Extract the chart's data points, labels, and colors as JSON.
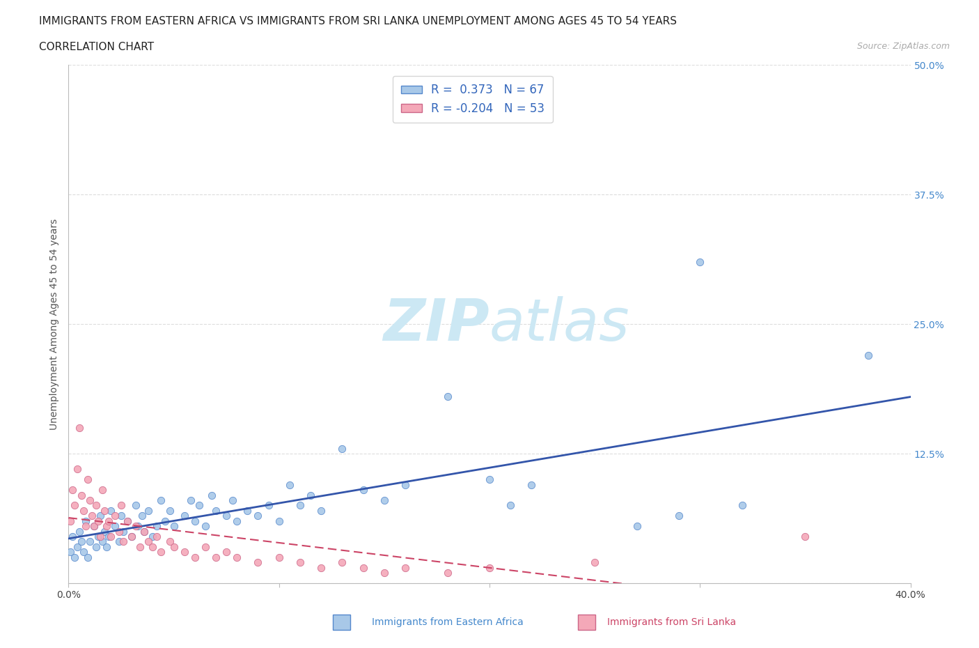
{
  "title_line1": "IMMIGRANTS FROM EASTERN AFRICA VS IMMIGRANTS FROM SRI LANKA UNEMPLOYMENT AMONG AGES 45 TO 54 YEARS",
  "title_line2": "CORRELATION CHART",
  "source": "Source: ZipAtlas.com",
  "xlabel_bottom_blue": "Immigrants from Eastern Africa",
  "xlabel_bottom_pink": "Immigrants from Sri Lanka",
  "ylabel": "Unemployment Among Ages 45 to 54 years",
  "xlim": [
    0.0,
    0.4
  ],
  "ylim": [
    0.0,
    0.5
  ],
  "xticks": [
    0.0,
    0.1,
    0.2,
    0.3,
    0.4
  ],
  "xtick_labels": [
    "0.0%",
    "",
    "",
    "",
    "40.0%"
  ],
  "yticks": [
    0.0,
    0.125,
    0.25,
    0.375,
    0.5
  ],
  "ytick_labels_right": [
    "",
    "12.5%",
    "25.0%",
    "37.5%",
    "50.0%"
  ],
  "blue_R": 0.373,
  "blue_N": 67,
  "pink_R": -0.204,
  "pink_N": 53,
  "blue_scatter_color": "#a8c8e8",
  "blue_scatter_edge": "#5588cc",
  "pink_scatter_color": "#f4a8b8",
  "pink_scatter_edge": "#cc6688",
  "blue_line_color": "#3355aa",
  "pink_line_color": "#cc4466",
  "watermark_color": "#cce8f4",
  "background_color": "#ffffff",
  "grid_color": "#dddddd",
  "blue_scatter_x": [
    0.001,
    0.002,
    0.003,
    0.004,
    0.005,
    0.006,
    0.007,
    0.008,
    0.009,
    0.01,
    0.012,
    0.013,
    0.014,
    0.015,
    0.016,
    0.017,
    0.018,
    0.019,
    0.02,
    0.022,
    0.024,
    0.025,
    0.026,
    0.028,
    0.03,
    0.032,
    0.033,
    0.035,
    0.036,
    0.038,
    0.04,
    0.042,
    0.044,
    0.046,
    0.048,
    0.05,
    0.055,
    0.058,
    0.06,
    0.062,
    0.065,
    0.068,
    0.07,
    0.075,
    0.078,
    0.08,
    0.085,
    0.09,
    0.095,
    0.1,
    0.105,
    0.11,
    0.115,
    0.12,
    0.13,
    0.14,
    0.15,
    0.16,
    0.18,
    0.2,
    0.21,
    0.22,
    0.27,
    0.29,
    0.3,
    0.32,
    0.38
  ],
  "blue_scatter_y": [
    0.03,
    0.045,
    0.025,
    0.035,
    0.05,
    0.04,
    0.03,
    0.06,
    0.025,
    0.04,
    0.055,
    0.035,
    0.045,
    0.065,
    0.04,
    0.05,
    0.035,
    0.045,
    0.07,
    0.055,
    0.04,
    0.065,
    0.05,
    0.06,
    0.045,
    0.075,
    0.055,
    0.065,
    0.05,
    0.07,
    0.045,
    0.055,
    0.08,
    0.06,
    0.07,
    0.055,
    0.065,
    0.08,
    0.06,
    0.075,
    0.055,
    0.085,
    0.07,
    0.065,
    0.08,
    0.06,
    0.07,
    0.065,
    0.075,
    0.06,
    0.095,
    0.075,
    0.085,
    0.07,
    0.13,
    0.09,
    0.08,
    0.095,
    0.18,
    0.1,
    0.075,
    0.095,
    0.055,
    0.065,
    0.31,
    0.075,
    0.22
  ],
  "pink_scatter_x": [
    0.001,
    0.002,
    0.003,
    0.004,
    0.005,
    0.006,
    0.007,
    0.008,
    0.009,
    0.01,
    0.011,
    0.012,
    0.013,
    0.014,
    0.015,
    0.016,
    0.017,
    0.018,
    0.019,
    0.02,
    0.022,
    0.024,
    0.025,
    0.026,
    0.028,
    0.03,
    0.032,
    0.034,
    0.036,
    0.038,
    0.04,
    0.042,
    0.044,
    0.048,
    0.05,
    0.055,
    0.06,
    0.065,
    0.07,
    0.075,
    0.08,
    0.09,
    0.1,
    0.11,
    0.12,
    0.13,
    0.14,
    0.15,
    0.16,
    0.18,
    0.2,
    0.25,
    0.35
  ],
  "pink_scatter_y": [
    0.06,
    0.09,
    0.075,
    0.11,
    0.15,
    0.085,
    0.07,
    0.055,
    0.1,
    0.08,
    0.065,
    0.055,
    0.075,
    0.06,
    0.045,
    0.09,
    0.07,
    0.055,
    0.06,
    0.045,
    0.065,
    0.05,
    0.075,
    0.04,
    0.06,
    0.045,
    0.055,
    0.035,
    0.05,
    0.04,
    0.035,
    0.045,
    0.03,
    0.04,
    0.035,
    0.03,
    0.025,
    0.035,
    0.025,
    0.03,
    0.025,
    0.02,
    0.025,
    0.02,
    0.015,
    0.02,
    0.015,
    0.01,
    0.015,
    0.01,
    0.015,
    0.02,
    0.045
  ],
  "title_fontsize": 11,
  "axis_label_fontsize": 10,
  "tick_fontsize": 10,
  "legend_fontsize": 12
}
